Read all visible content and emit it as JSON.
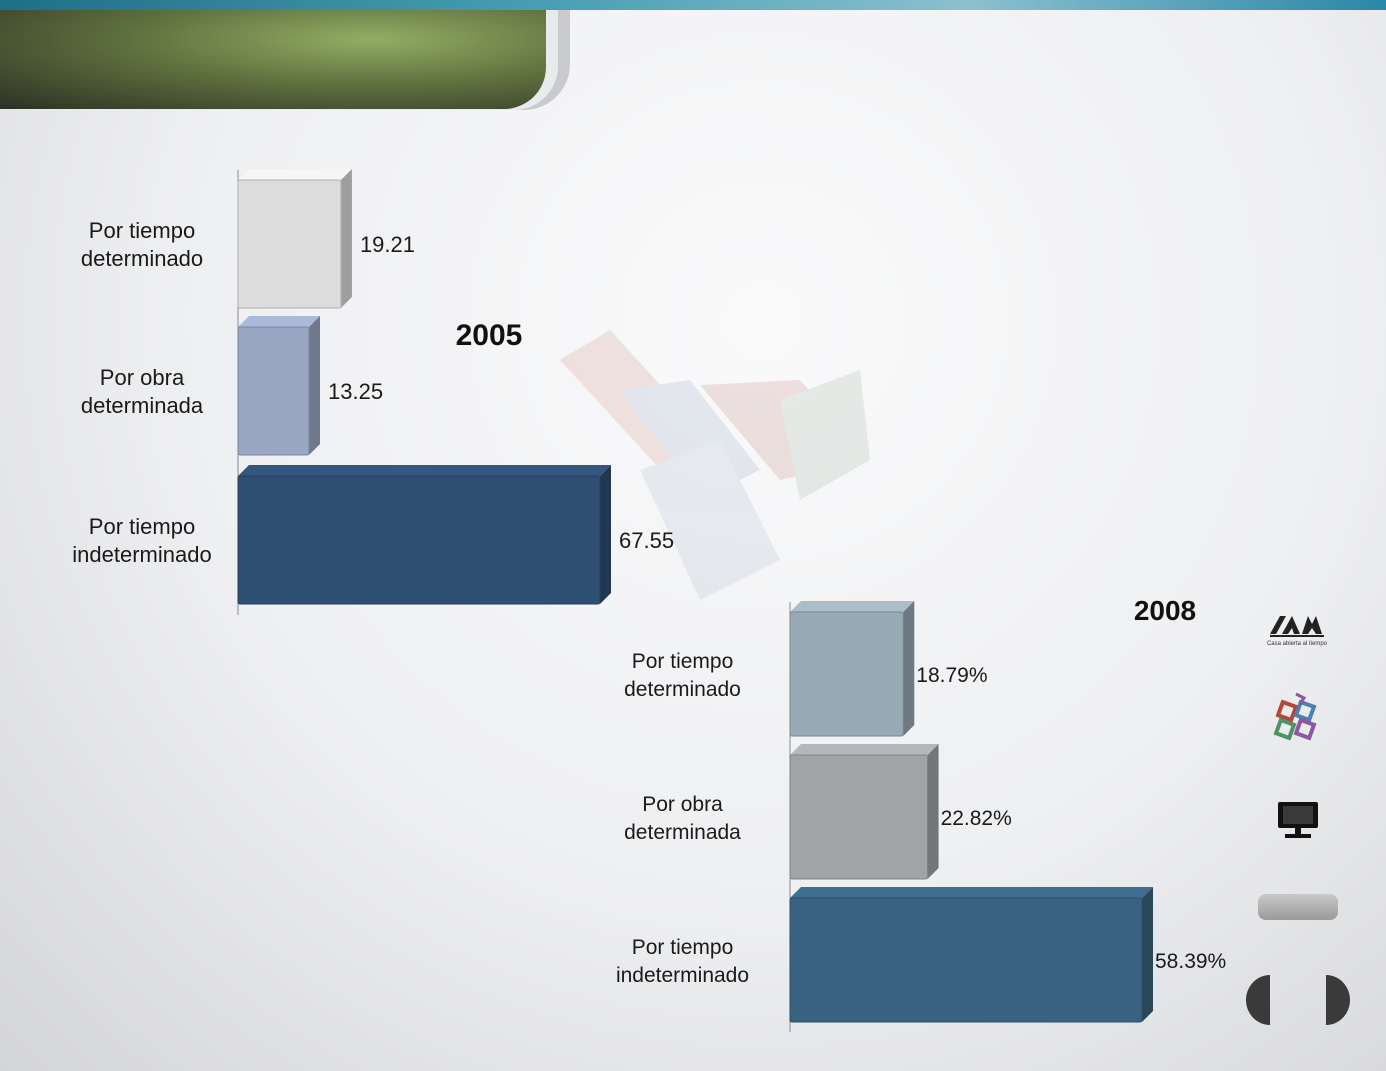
{
  "chart_data": [
    {
      "type": "bar",
      "orientation": "horizontal",
      "title": "2005",
      "categories": [
        "Por tiempo determinado",
        "Por obra determinada",
        "Por tiempo indeterminado"
      ],
      "category_lines": [
        [
          "Por tiempo",
          "determinado"
        ],
        [
          "Por obra",
          "determinada"
        ],
        [
          "Por tiempo",
          "indeterminado"
        ]
      ],
      "values": [
        19.21,
        13.25,
        67.55
      ],
      "value_labels": [
        "19.21",
        "13.25",
        "67.55"
      ],
      "bar_colors": [
        "#dcdcdc",
        "#9aa6c2",
        "#2e4e72"
      ],
      "xlim": [
        0,
        67.55
      ],
      "grid": false,
      "legend": "none"
    },
    {
      "type": "bar",
      "orientation": "horizontal",
      "title": "2008",
      "categories": [
        "Por tiempo determinado",
        "Por obra determinada",
        "Por tiempo indeterminado"
      ],
      "category_lines": [
        [
          "Por tiempo",
          "determinado"
        ],
        [
          "Por obra",
          "determinada"
        ],
        [
          "Por tiempo",
          "indeterminado"
        ]
      ],
      "values": [
        18.79,
        22.82,
        58.39
      ],
      "value_labels": [
        "18.79%",
        "22.82%",
        "58.39%"
      ],
      "bar_colors": [
        "#98aab4",
        "#a0a4a7",
        "#38627f"
      ],
      "xlim": [
        0,
        58.39
      ],
      "grid": false,
      "legend": "none"
    }
  ],
  "sidebar": {
    "logo_tagline": "Casa abierta al tiempo",
    "icons": [
      "uam-logo",
      "library-icon",
      "monitor-icon",
      "menu-button",
      "prev-arrow",
      "next-arrow"
    ]
  },
  "colors": {
    "banner": "#60723f",
    "top_strip": "#4a9fb4"
  }
}
